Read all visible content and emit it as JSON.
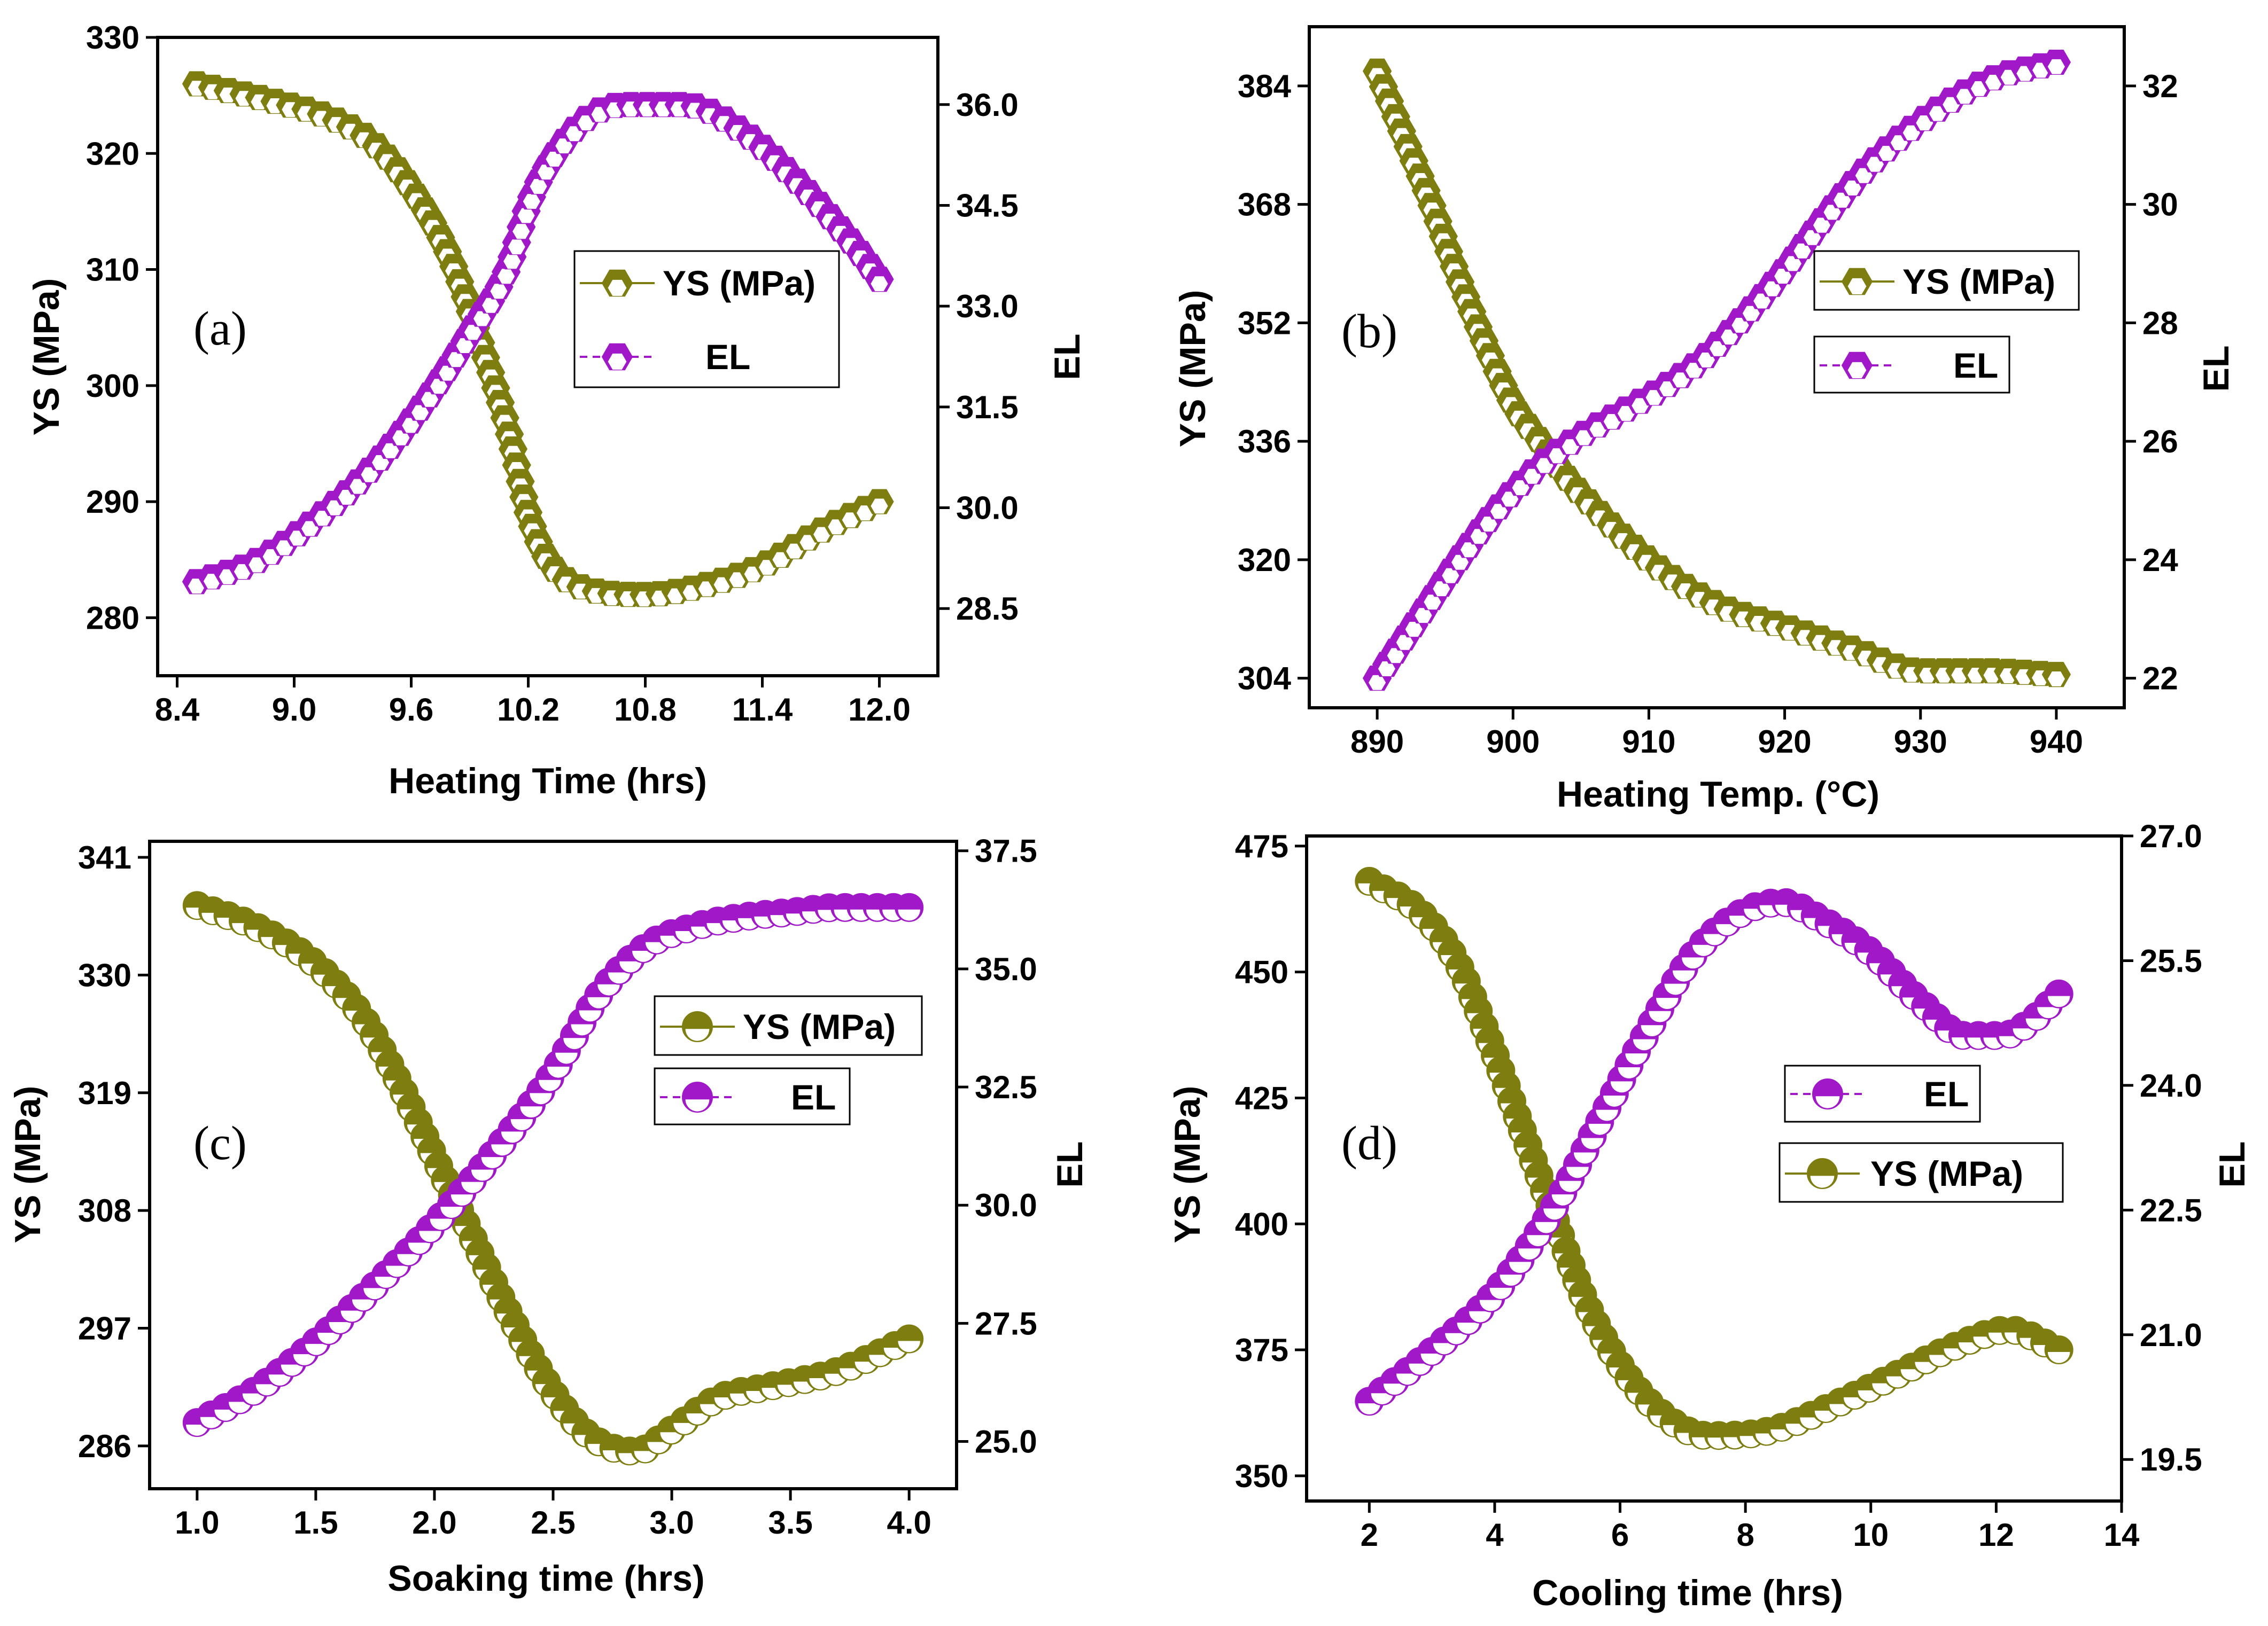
{
  "colors": {
    "ys": "#7d7d10",
    "el": "#a018c8"
  },
  "chart_data": [
    {
      "type": "line",
      "panel_label": "(a)",
      "xlabel": "Heating Time (hrs)",
      "ylabel": "YS (MPa)",
      "y2label": "EL",
      "xlim": [
        8.3,
        12.3
      ],
      "ylim": [
        275,
        330
      ],
      "y2lim": [
        27.5,
        37.0
      ],
      "xticks": [
        "8.4",
        "9.0",
        "9.6",
        "10.2",
        "10.8",
        "11.4",
        "12.0"
      ],
      "yticks": [
        "280",
        "290",
        "300",
        "310",
        "320",
        "330"
      ],
      "y2ticks": [
        "28.5",
        "30.0",
        "31.5",
        "33.0",
        "34.5",
        "36.0"
      ],
      "marker": "hexagon",
      "legend_order": [
        "ys",
        "el"
      ],
      "series": [
        {
          "key": "ys",
          "name": "YS (MPa)",
          "axis": "left",
          "x": [
            8.5,
            8.9,
            9.2,
            9.4,
            9.6,
            9.8,
            9.95,
            10.1,
            10.2,
            10.3,
            10.5,
            10.8,
            11.1,
            11.4,
            11.7,
            12.0
          ],
          "values": [
            326,
            324.5,
            323,
            321,
            317,
            311,
            304,
            296,
            289,
            285,
            282.5,
            282,
            282.8,
            284.5,
            287.5,
            290
          ]
        },
        {
          "key": "el",
          "name": "EL",
          "axis": "right",
          "x": [
            8.5,
            8.8,
            9.1,
            9.4,
            9.7,
            9.9,
            10.1,
            10.2,
            10.3,
            10.5,
            10.7,
            11.0,
            11.3,
            11.6,
            11.9,
            12.0
          ],
          "values": [
            28.9,
            29.2,
            29.8,
            30.6,
            31.7,
            32.6,
            33.6,
            34.5,
            35.1,
            35.8,
            36.0,
            36.0,
            35.6,
            34.8,
            33.8,
            33.4
          ]
        }
      ]
    },
    {
      "type": "line",
      "panel_label": "(b)",
      "xlabel": "Heating Temp. (°C)",
      "ylabel": "YS (MPa)",
      "y2label": "EL",
      "xlim": [
        885,
        945
      ],
      "ylim": [
        300,
        392
      ],
      "y2lim": [
        21.5,
        33.0
      ],
      "xticks": [
        "890",
        "900",
        "910",
        "920",
        "930",
        "940"
      ],
      "yticks": [
        "304",
        "320",
        "336",
        "352",
        "368",
        "384"
      ],
      "y2ticks": [
        "22",
        "24",
        "26",
        "28",
        "30",
        "32"
      ],
      "marker": "hexagon",
      "legend_order": [
        "ys",
        "el"
      ],
      "series": [
        {
          "key": "ys",
          "name": "YS (MPa)",
          "axis": "left",
          "x": [
            890,
            892,
            894,
            896,
            898,
            900,
            902,
            904,
            906,
            910,
            915,
            920,
            925,
            930,
            935,
            940
          ],
          "values": [
            386,
            377,
            368,
            358,
            349,
            341,
            336,
            331,
            327,
            320,
            314,
            311,
            308,
            305,
            305,
            304.5
          ]
        },
        {
          "key": "el",
          "name": "EL",
          "axis": "right",
          "x": [
            890,
            893,
            896,
            899,
            902,
            905,
            908,
            911,
            914,
            917,
            920,
            923,
            926,
            930,
            935,
            940
          ],
          "values": [
            22.0,
            23.0,
            24.0,
            24.9,
            25.6,
            26.1,
            26.5,
            26.9,
            27.4,
            28.1,
            28.9,
            29.8,
            30.6,
            31.4,
            32.1,
            32.4
          ]
        }
      ]
    },
    {
      "type": "line",
      "panel_label": "(c)",
      "xlabel": "Soaking time (hrs)",
      "ylabel": "YS (MPa)",
      "y2label": "EL",
      "xlim": [
        0.8,
        4.2
      ],
      "ylim": [
        282,
        342.5
      ],
      "y2lim": [
        24.0,
        37.7
      ],
      "xticks": [
        "1.0",
        "1.5",
        "2.0",
        "2.5",
        "3.0",
        "3.5",
        "4.0"
      ],
      "yticks": [
        "286",
        "297",
        "308",
        "319",
        "330",
        "341"
      ],
      "y2ticks": [
        "25.0",
        "27.5",
        "30.0",
        "32.5",
        "35.0",
        "37.5"
      ],
      "marker": "circle",
      "legend_order": [
        "ys",
        "el"
      ],
      "series": [
        {
          "key": "ys",
          "name": "YS (MPa)",
          "axis": "left",
          "x": [
            1.0,
            1.25,
            1.5,
            1.7,
            1.85,
            2.0,
            2.15,
            2.3,
            2.5,
            2.65,
            2.85,
            3.0,
            3.2,
            3.4,
            3.7,
            4.0
          ],
          "values": [
            336.5,
            334.5,
            331,
            326,
            320,
            313,
            306,
            299,
            291,
            287,
            285.5,
            287.5,
            290.5,
            291.5,
            293,
            296
          ]
        },
        {
          "key": "el",
          "name": "EL",
          "axis": "right",
          "x": [
            1.0,
            1.25,
            1.5,
            1.75,
            2.0,
            2.25,
            2.5,
            2.7,
            2.9,
            3.1,
            3.3,
            3.5,
            3.7,
            4.0
          ],
          "values": [
            25.4,
            26.1,
            27.1,
            28.3,
            29.6,
            31.1,
            32.8,
            34.5,
            35.5,
            35.9,
            36.1,
            36.2,
            36.3,
            36.3
          ]
        }
      ]
    },
    {
      "type": "line",
      "panel_label": "(d)",
      "xlabel": "Cooling time (hrs)",
      "ylabel": "YS (MPa)",
      "y2label": "EL",
      "xlim": [
        1,
        14
      ],
      "ylim": [
        345,
        477
      ],
      "y2lim": [
        19.0,
        27.0
      ],
      "xticks": [
        "2",
        "4",
        "6",
        "8",
        "10",
        "12",
        "14"
      ],
      "yticks": [
        "350",
        "375",
        "400",
        "425",
        "450",
        "475"
      ],
      "y2ticks": [
        "19.5",
        "21.0",
        "22.5",
        "24.0",
        "25.5",
        "27.0"
      ],
      "marker": "circle",
      "legend_order": [
        "el",
        "ys"
      ],
      "series": [
        {
          "key": "ys",
          "name": "YS (MPa)",
          "axis": "left",
          "x": [
            2,
            2.8,
            3.4,
            3.9,
            4.4,
            4.9,
            5.4,
            6.0,
            6.6,
            7.4,
            8.4,
            9.4,
            10.4,
            11.4,
            12.2,
            13.0
          ],
          "values": [
            468,
            462,
            452,
            437,
            420,
            403,
            386,
            372,
            363,
            358,
            359,
            364,
            370,
            376,
            379,
            375
          ]
        },
        {
          "key": "el",
          "name": "EL",
          "axis": "right",
          "x": [
            2,
            3,
            4,
            5,
            5.7,
            6.4,
            7.2,
            8.0,
            8.6,
            9.2,
            10,
            10.8,
            11.5,
            12.1,
            12.6,
            13.0
          ],
          "values": [
            20.2,
            20.8,
            21.5,
            22.6,
            23.6,
            24.6,
            25.6,
            26.1,
            26.2,
            26.0,
            25.6,
            25.0,
            24.6,
            24.6,
            24.8,
            25.1
          ]
        }
      ]
    }
  ]
}
